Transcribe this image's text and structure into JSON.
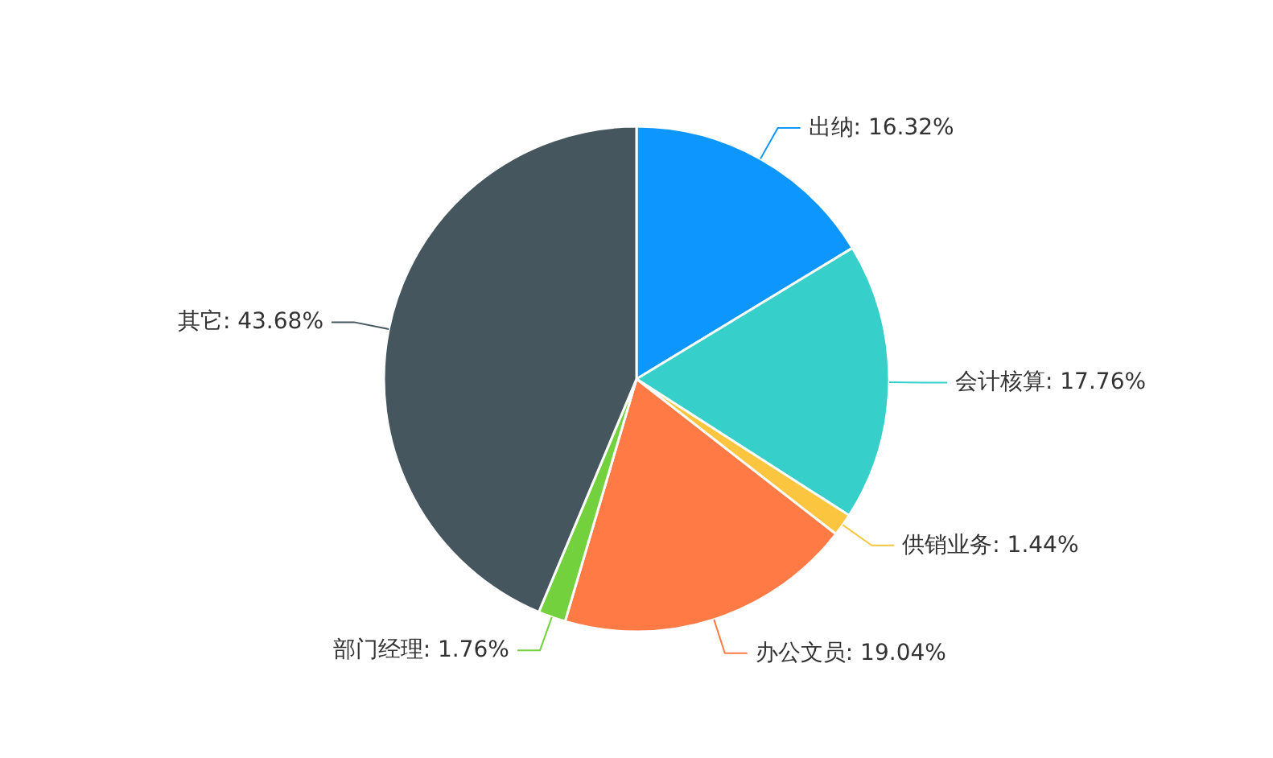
{
  "chart_data": {
    "type": "pie",
    "categories": [
      "出纳",
      "会计核算",
      "供销业务",
      "办公文员",
      "部门经理",
      "其它"
    ],
    "values": [
      16.32,
      17.76,
      1.44,
      19.04,
      1.76,
      43.68
    ],
    "colors": [
      "#0e96ff",
      "#36cfc9",
      "#fcc53f",
      "#ff7a45",
      "#73d13d",
      "#45565f"
    ],
    "value_labels": [
      "16.32%",
      "17.76%",
      "1.44%",
      "19.04%",
      "1.76%",
      "43.68%"
    ]
  }
}
